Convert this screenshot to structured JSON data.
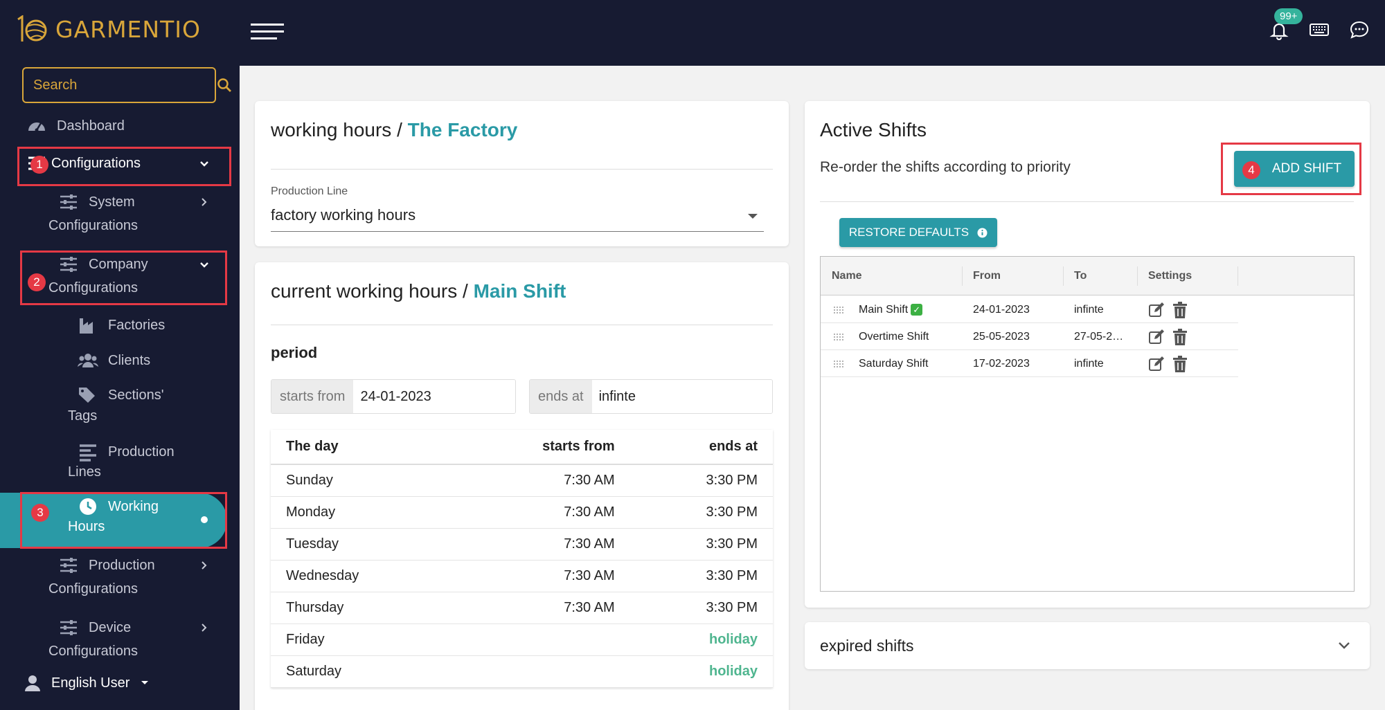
{
  "app": {
    "brand": "GARMENTIO",
    "notification_badge": "99+"
  },
  "topbar_icons": [
    "bell-icon",
    "keyboard-icon",
    "chat-icon"
  ],
  "sidebar": {
    "search_placeholder": "Search",
    "items": {
      "dashboard": "Dashboard",
      "configurations": "Configurations",
      "system_1": "System",
      "system_2": "Configurations",
      "company_1": "Company",
      "company_2": "Configurations",
      "factories": "Factories",
      "clients": "Clients",
      "sections_1": "Sections'",
      "sections_2": "Tags",
      "production_lines_1": "Production",
      "production_lines_2": "Lines",
      "working_hours_1": "Working",
      "working_hours_2": "Hours",
      "production_conf_1": "Production",
      "production_conf_2": "Configurations",
      "device_conf_1": "Device",
      "device_conf_2": "Configurations"
    },
    "user": "English User"
  },
  "annotations": [
    "1",
    "2",
    "3",
    "4"
  ],
  "working_hours_card": {
    "title_prefix": "working hours / ",
    "title_accent": "The Factory",
    "select_label": "Production Line",
    "select_value": "factory working hours"
  },
  "current_card": {
    "title_prefix": "current working hours / ",
    "title_accent": "Main Shift",
    "period_title": "period",
    "starts_label": "starts from",
    "starts_value": "24-01-2023",
    "ends_label": "ends at",
    "ends_value": "infinte",
    "table_headers": [
      "The day",
      "starts from",
      "ends at"
    ],
    "days": [
      {
        "day": "Sunday",
        "start": "7:30 AM",
        "end": "3:30 PM"
      },
      {
        "day": "Monday",
        "start": "7:30 AM",
        "end": "3:30 PM"
      },
      {
        "day": "Tuesday",
        "start": "7:30 AM",
        "end": "3:30 PM"
      },
      {
        "day": "Wednesday",
        "start": "7:30 AM",
        "end": "3:30 PM"
      },
      {
        "day": "Thursday",
        "start": "7:30 AM",
        "end": "3:30 PM"
      },
      {
        "day": "Friday",
        "start": "",
        "end": "holiday"
      },
      {
        "day": "Saturday",
        "start": "",
        "end": "holiday"
      }
    ]
  },
  "active_shifts": {
    "title": "Active Shifts",
    "subtitle": "Re-order the shifts according to priority",
    "add_label": "ADD SHIFT",
    "restore_label": "RESTORE DEFAULTS",
    "columns": [
      "Name",
      "From",
      "To",
      "Settings"
    ],
    "rows": [
      {
        "name": "Main Shift",
        "from": "24-01-2023",
        "to": "infinte",
        "active": true
      },
      {
        "name": "Overtime Shift",
        "from": "25-05-2023",
        "to": "27-05-2…",
        "active": false
      },
      {
        "name": "Saturday Shift",
        "from": "17-02-2023",
        "to": "infinte",
        "active": false
      }
    ]
  },
  "expired": {
    "title": "expired shifts"
  },
  "colors": {
    "navy": "#171b32",
    "gold": "#d9a63a",
    "teal": "#2a9aa6",
    "annotation_red": "#e53945",
    "holiday_green": "#4fb58f"
  }
}
